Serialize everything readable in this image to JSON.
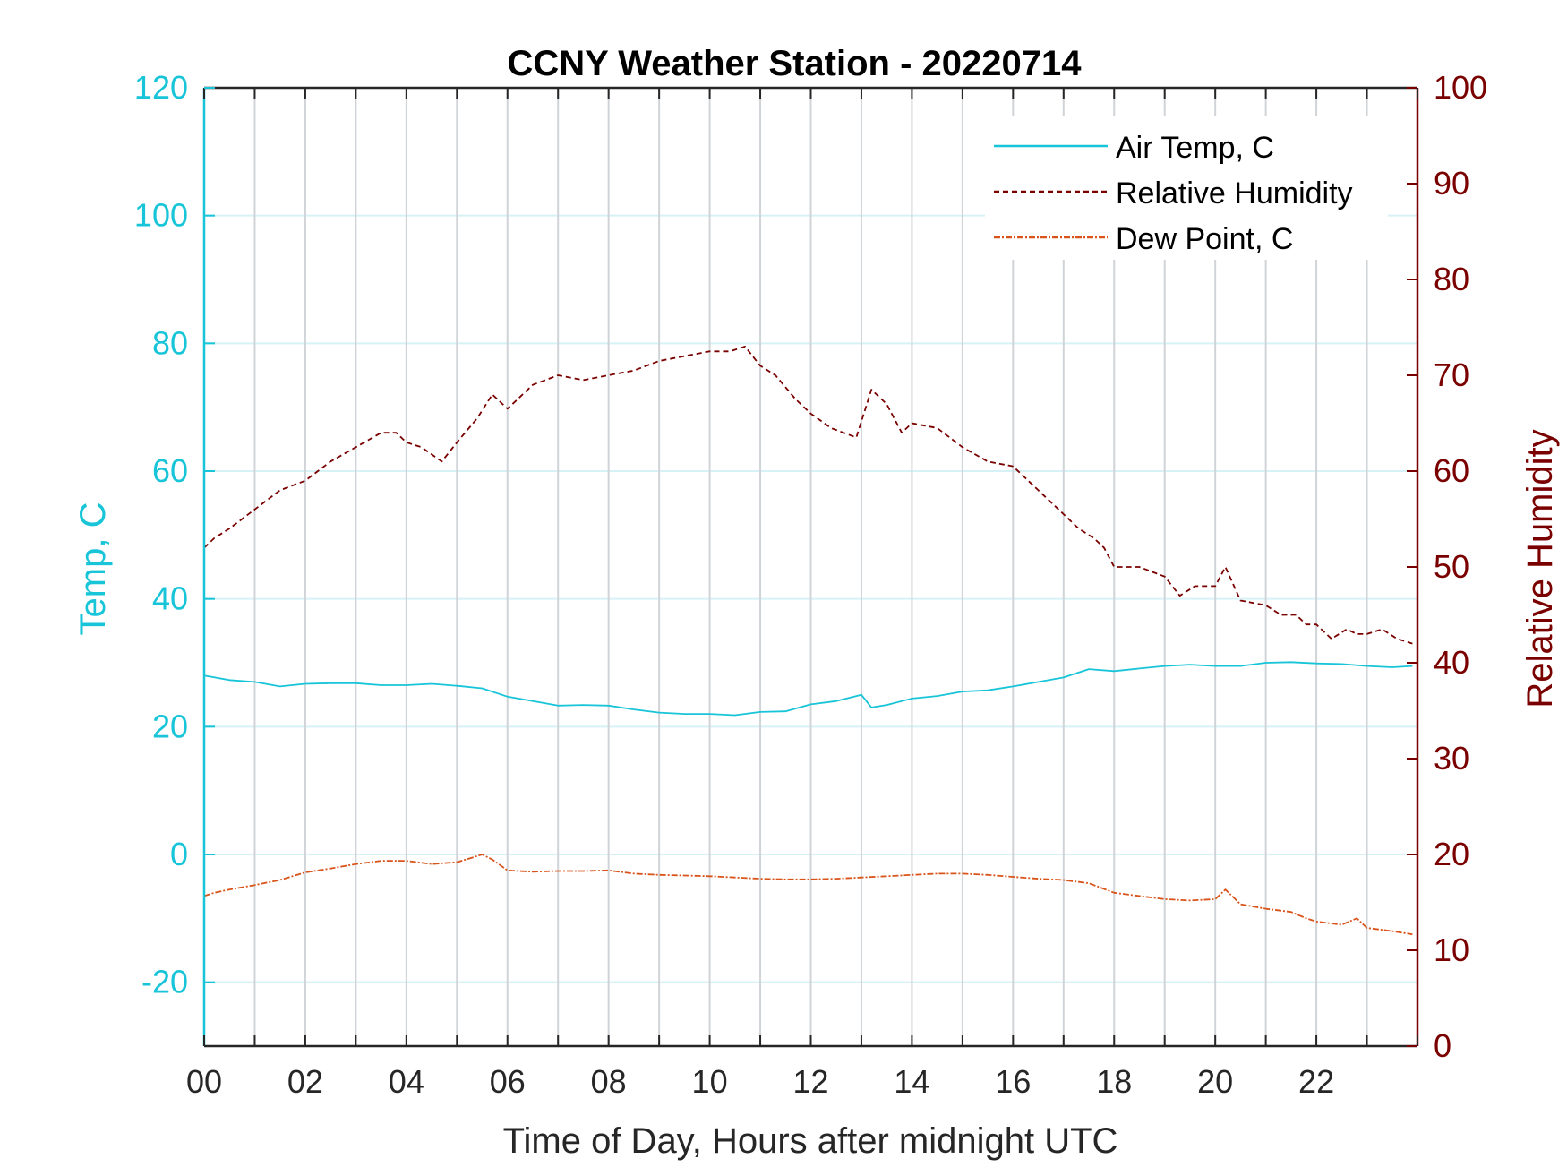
{
  "chart_data": {
    "type": "line",
    "title": "CCNY Weather Station - 20220714",
    "xlabel": "Time of Day, Hours after midnight UTC",
    "ylabel_left": "Temp, C",
    "ylabel_right": "Relative Humidity",
    "xlim": [
      0,
      24
    ],
    "ylim_left": [
      -30,
      120
    ],
    "ylim_right": [
      0,
      100
    ],
    "x_ticks": [
      0,
      2,
      4,
      6,
      8,
      10,
      12,
      14,
      16,
      18,
      20,
      22
    ],
    "x_tick_labels": [
      "00",
      "02",
      "04",
      "06",
      "08",
      "10",
      "12",
      "14",
      "16",
      "18",
      "20",
      "22"
    ],
    "y_left_ticks": [
      -20,
      0,
      20,
      40,
      60,
      80,
      100,
      120
    ],
    "y_left_tick_labels": [
      "-20",
      "0",
      "20",
      "40",
      "60",
      "80",
      "100",
      "120"
    ],
    "y_right_ticks": [
      0,
      10,
      20,
      30,
      40,
      50,
      60,
      70,
      80,
      90,
      100
    ],
    "y_right_tick_labels": [
      "0",
      "10",
      "20",
      "30",
      "40",
      "50",
      "60",
      "70",
      "80",
      "90",
      "100"
    ],
    "grid": "vertical lines every hour, horizontal lines at left-axis ticks",
    "legend_position": "top-right",
    "colors": {
      "air_temp": "#17c4d8",
      "relative_humidity": "#7a0000",
      "dew_point": "#d9541a",
      "vgrid": "#d0d4d8",
      "hgrid": "#d6f2f6"
    },
    "series": [
      {
        "name": "Air Temp, C",
        "axis": "left",
        "style": "solid",
        "x": [
          0,
          0.5,
          1,
          1.5,
          2,
          2.5,
          3,
          3.5,
          4,
          4.5,
          5,
          5.5,
          6,
          6.5,
          7,
          7.5,
          8,
          8.5,
          9,
          9.5,
          10,
          10.5,
          11,
          11.5,
          12,
          12.5,
          13,
          13.2,
          13.5,
          14,
          14.5,
          15,
          15.5,
          16,
          16.5,
          17,
          17.5,
          18,
          18.5,
          19,
          19.5,
          20,
          20.5,
          21,
          21.5,
          22,
          22.5,
          23,
          23.5,
          23.9
        ],
        "y": [
          28.0,
          27.3,
          27.0,
          26.3,
          26.7,
          26.8,
          26.8,
          26.5,
          26.5,
          26.7,
          26.4,
          26.0,
          24.7,
          24.0,
          23.3,
          23.4,
          23.3,
          22.7,
          22.2,
          22.0,
          22.0,
          21.8,
          22.3,
          22.4,
          23.5,
          24.0,
          25.0,
          23.0,
          23.4,
          24.4,
          24.8,
          25.5,
          25.7,
          26.3,
          27.0,
          27.7,
          29.0,
          28.7,
          29.1,
          29.5,
          29.7,
          29.5,
          29.5,
          30.0,
          30.1,
          29.9,
          29.8,
          29.5,
          29.3,
          29.5
        ]
      },
      {
        "name": "Relative Humidity",
        "axis": "right",
        "style": "dashed",
        "x": [
          0,
          0.2,
          0.5,
          1,
          1.5,
          2,
          2.5,
          3,
          3.5,
          3.8,
          4,
          4.3,
          4.7,
          5,
          5.4,
          5.7,
          6,
          6.5,
          7,
          7.5,
          8,
          8.5,
          9,
          9.5,
          10,
          10.4,
          10.7,
          11,
          11.3,
          11.7,
          12,
          12.4,
          12.9,
          13.2,
          13.5,
          13.8,
          14,
          14.5,
          15,
          15.5,
          16,
          16.5,
          17,
          17.3,
          17.6,
          17.8,
          18,
          18.5,
          19,
          19.3,
          19.6,
          20,
          20.2,
          20.5,
          21,
          21.3,
          21.6,
          21.8,
          22,
          22.3,
          22.6,
          22.8,
          23,
          23.3,
          23.6,
          23.9
        ],
        "y": [
          52,
          53,
          54,
          56,
          58,
          59,
          61,
          62.5,
          64,
          64,
          63,
          62.5,
          61,
          63,
          65.5,
          68,
          66.5,
          69,
          70,
          69.5,
          70,
          70.5,
          71.5,
          72,
          72.5,
          72.5,
          73,
          71,
          70,
          67.5,
          66,
          64.5,
          63.5,
          68.5,
          67,
          64,
          65,
          64.5,
          62.5,
          61,
          60.5,
          58,
          55.5,
          54,
          53,
          52,
          50,
          50,
          49,
          47,
          48,
          48,
          50,
          46.5,
          46,
          45,
          45,
          44,
          44,
          42.5,
          43.5,
          43,
          43,
          43.5,
          42.5,
          42
        ]
      },
      {
        "name": "Dew Point, C",
        "axis": "left",
        "style": "dash-dot",
        "x": [
          0,
          0.2,
          0.5,
          1,
          1.5,
          2,
          2.5,
          3,
          3.5,
          4,
          4.5,
          5,
          5.3,
          5.5,
          5.7,
          6,
          6.5,
          7,
          7.5,
          8,
          8.5,
          9,
          9.5,
          10,
          10.5,
          11,
          11.5,
          12,
          12.5,
          13,
          13.5,
          14,
          14.5,
          15,
          15.5,
          16,
          16.5,
          17,
          17.5,
          18,
          18.5,
          19,
          19.5,
          20,
          20.2,
          20.5,
          21,
          21.5,
          21.8,
          22,
          22.5,
          22.8,
          23,
          23.5,
          23.9
        ],
        "y": [
          -6.5,
          -6.0,
          -5.5,
          -4.8,
          -4.0,
          -2.8,
          -2.2,
          -1.5,
          -1.0,
          -1.0,
          -1.5,
          -1.2,
          -0.5,
          0.0,
          -0.8,
          -2.5,
          -2.7,
          -2.6,
          -2.6,
          -2.5,
          -3.0,
          -3.2,
          -3.3,
          -3.4,
          -3.6,
          -3.8,
          -3.9,
          -3.9,
          -3.8,
          -3.6,
          -3.4,
          -3.2,
          -3.0,
          -3.0,
          -3.2,
          -3.5,
          -3.8,
          -4.0,
          -4.5,
          -6.0,
          -6.5,
          -7.0,
          -7.2,
          -7.0,
          -5.5,
          -7.8,
          -8.5,
          -9.0,
          -10.0,
          -10.5,
          -11.0,
          -10.0,
          -11.5,
          -12.0,
          -12.5
        ]
      }
    ]
  }
}
